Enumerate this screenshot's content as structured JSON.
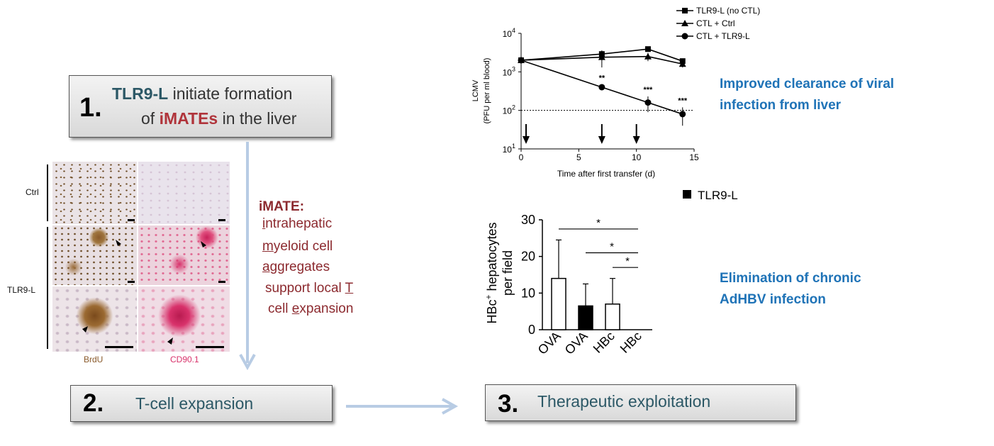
{
  "step1": {
    "number": "1.",
    "term": "TLR9-L",
    "text_a": " initiate formation",
    "text_b_prefix": "of ",
    "term2": "iMATEs",
    "text_b_suffix": " in the liver"
  },
  "step2": {
    "number": "2.",
    "label": "T-cell expansion"
  },
  "step3": {
    "number": "3.",
    "label": "Therapeutic exploitation"
  },
  "imate": {
    "title": "iMATE:",
    "line1_u": "i",
    "line1_rest": "ntrahepatic",
    "line2_u": "m",
    "line2_rest": "yeloid cell",
    "line3_u": "a",
    "line3_rest": "ggregates",
    "line4_pre": "support local ",
    "line4_u": "T",
    "line5_pre": "cell ",
    "line5_u": "e",
    "line5_rest": "xpansion"
  },
  "micrograph": {
    "row_ctrl": "Ctrl",
    "row_tlr9": "TLR9-L",
    "col_brdu": "BrdU",
    "col_cd90": "CD90.1",
    "colors": {
      "brdu": "#8a5a2b",
      "cd90": "#d8326b"
    }
  },
  "notes": {
    "clearance_1": "Improved clearance of viral",
    "clearance_2": "infection from liver",
    "elim_1": "Elimination of chronic",
    "elim_2": "AdHBV infection"
  },
  "chart_data": [
    {
      "type": "line",
      "ylabel_1": "LCMV",
      "ylabel_2": "(PFU per ml blood)",
      "xlabel": "Time after first transfer (d)",
      "x_ticks": [
        "0",
        "5",
        "10",
        "15"
      ],
      "y_ticks": [
        "10^1",
        "10^2",
        "10^3",
        "10^4"
      ],
      "yscale": "log",
      "xlim": [
        0,
        15
      ],
      "ylim": [
        10,
        10000
      ],
      "detection_limit": 100,
      "arrows_at_days": [
        0,
        7,
        10
      ],
      "series": [
        {
          "name": "TLR9-L (no CTL)",
          "marker": "square",
          "x": [
            0,
            7,
            11,
            14
          ],
          "y": [
            2000,
            2900,
            3900,
            1900
          ],
          "err": [
            300,
            700,
            400,
            300
          ]
        },
        {
          "name": "CTL + Ctrl",
          "marker": "triangle",
          "x": [
            0,
            7,
            11,
            14
          ],
          "y": [
            2000,
            2400,
            2500,
            1600
          ],
          "err": [
            300,
            1100,
            600,
            300
          ]
        },
        {
          "name": "CTL + TLR9-L",
          "marker": "circle",
          "x": [
            0,
            7,
            11,
            14
          ],
          "y": [
            2000,
            400,
            160,
            80
          ],
          "err": [
            300,
            60,
            70,
            40
          ]
        }
      ],
      "annotations": [
        {
          "x": 7,
          "text": "**"
        },
        {
          "x": 11,
          "text": "***"
        },
        {
          "x": 14,
          "text": "***"
        }
      ]
    },
    {
      "type": "bar",
      "legend": "TLR9-L",
      "ylabel_1": "HBc",
      "ylabel_sup": "+",
      "ylabel_2": " hepatocytes",
      "ylabel_3": "per field",
      "categories": [
        "OVA",
        "OVA",
        "HBc",
        "HBc"
      ],
      "filled": [
        false,
        true,
        false,
        true
      ],
      "values": [
        14,
        6.5,
        7,
        0
      ],
      "err": [
        10.5,
        6,
        7,
        0
      ],
      "y_ticks": [
        "0",
        "10",
        "20",
        "30"
      ],
      "ylim": [
        0,
        30
      ],
      "significance": [
        "*",
        "*",
        "*"
      ]
    }
  ]
}
